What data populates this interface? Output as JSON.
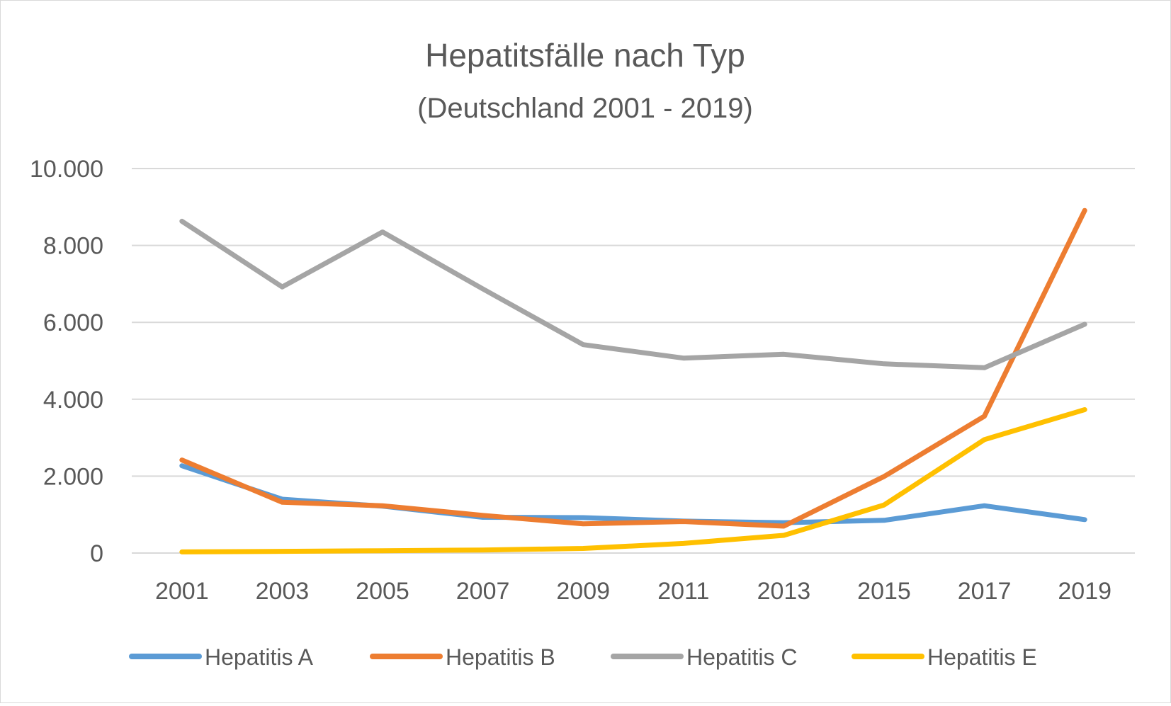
{
  "chart_data": {
    "type": "line",
    "title": "Hepatitsfälle nach Typ",
    "subtitle": "(Deutschland 2001 - 2019)",
    "xlabel": "",
    "ylabel": "",
    "categories": [
      "2001",
      "2003",
      "2005",
      "2007",
      "2009",
      "2011",
      "2013",
      "2015",
      "2017",
      "2019"
    ],
    "ylim": [
      0,
      10000
    ],
    "yticks": [
      0,
      2000,
      4000,
      6000,
      8000,
      10000
    ],
    "ytick_labels": [
      "0",
      "2.000",
      "4.000",
      "6.000",
      "8.000",
      "10.000"
    ],
    "grid": true,
    "legend_position": "bottom",
    "series": [
      {
        "name": "Hepatitis A",
        "color": "#5b9bd5",
        "values": [
          2270,
          1400,
          1220,
          930,
          920,
          830,
          790,
          850,
          1230,
          870
        ]
      },
      {
        "name": "Hepatitis B",
        "color": "#ed7d31",
        "values": [
          2420,
          1320,
          1230,
          980,
          760,
          820,
          700,
          1990,
          3560,
          8910
        ]
      },
      {
        "name": "Hepatitis C",
        "color": "#a5a5a5",
        "values": [
          8630,
          6920,
          8350,
          6870,
          5420,
          5070,
          5170,
          4920,
          4820,
          5950
        ]
      },
      {
        "name": "Hepatitis E",
        "color": "#ffc000",
        "values": [
          30,
          45,
          60,
          80,
          120,
          250,
          460,
          1250,
          2950,
          3730
        ]
      }
    ]
  }
}
